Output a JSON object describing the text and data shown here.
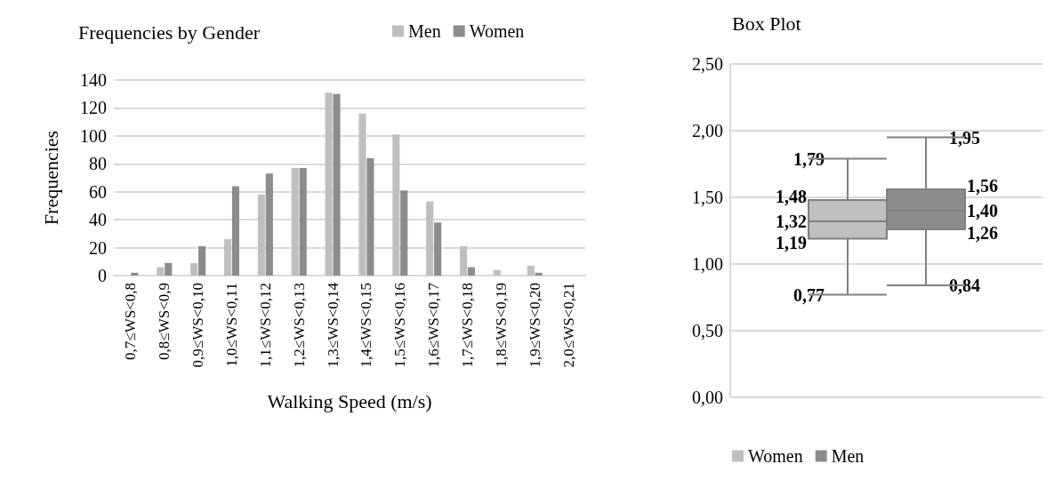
{
  "chart_data": [
    {
      "type": "bar",
      "title": "Frequencies by Gender",
      "xlabel": "Walking Speed (m/s)",
      "ylabel": "Frequencies",
      "categories": [
        "0,7≤WS<0,8",
        "0,8≤WS<0,9",
        "0,9≤WS<0,10",
        "1,0≤WS<0,11",
        "1,1≤WS<0,12",
        "1,2≤WS<0,13",
        "1,3≤WS<0,14",
        "1,4≤WS<0,15",
        "1,5≤WS<0,16",
        "1,6≤WS<0,17",
        "1,7≤WS<0,18",
        "1,8≤WS<0,19",
        "1,9≤WS<0,20",
        "2,0≤WS<0,21"
      ],
      "series": [
        {
          "name": "Men",
          "color": "#bfbfbf",
          "values": [
            0,
            6,
            9,
            26,
            58,
            77,
            131,
            116,
            101,
            53,
            21,
            4,
            7,
            null
          ]
        },
        {
          "name": "Women",
          "color": "#8c8c8c",
          "values": [
            2,
            9,
            21,
            64,
            73,
            77,
            130,
            84,
            61,
            38,
            6,
            0,
            2,
            0
          ]
        }
      ],
      "ylim": [
        0,
        140
      ],
      "yticks": [
        0,
        20,
        40,
        60,
        80,
        100,
        120,
        140
      ],
      "grid": "y",
      "legend": "top right"
    },
    {
      "type": "box",
      "title": "Box Plot",
      "categories": [
        null
      ],
      "series": [
        {
          "name": "Women",
          "color": "#bfbfbf",
          "boxes": [
            {
              "low": 0.77,
              "q1": 1.19,
              "median": 1.32,
              "q3": 1.48,
              "high": 1.79
            }
          ],
          "value_labels": [
            {
              "low": "0,77",
              "q1": "1,19",
              "median": "1,32",
              "q3": "1,48",
              "high": "1,79"
            }
          ]
        },
        {
          "name": "Men",
          "color": "#8c8c8c",
          "boxes": [
            {
              "low": 0.84,
              "q1": 1.26,
              "median": 1.4,
              "q3": 1.56,
              "high": 1.95
            }
          ],
          "value_labels": [
            {
              "low": "0,84",
              "q1": "1,26",
              "median": "1,40",
              "q3": "1,56",
              "high": "1,95"
            }
          ]
        }
      ],
      "ylim": [
        0,
        2.5
      ],
      "yticks": [
        {
          "value": 0,
          "label": "0,00"
        },
        {
          "value": 0.5,
          "label": "0,50"
        },
        {
          "value": 1,
          "label": "1,00"
        },
        {
          "value": 1.5,
          "label": "1,50"
        },
        {
          "value": 2,
          "label": "2,00"
        },
        {
          "value": 2.5,
          "label": "2,50"
        }
      ],
      "grid": "y",
      "legend": "bottom"
    }
  ]
}
